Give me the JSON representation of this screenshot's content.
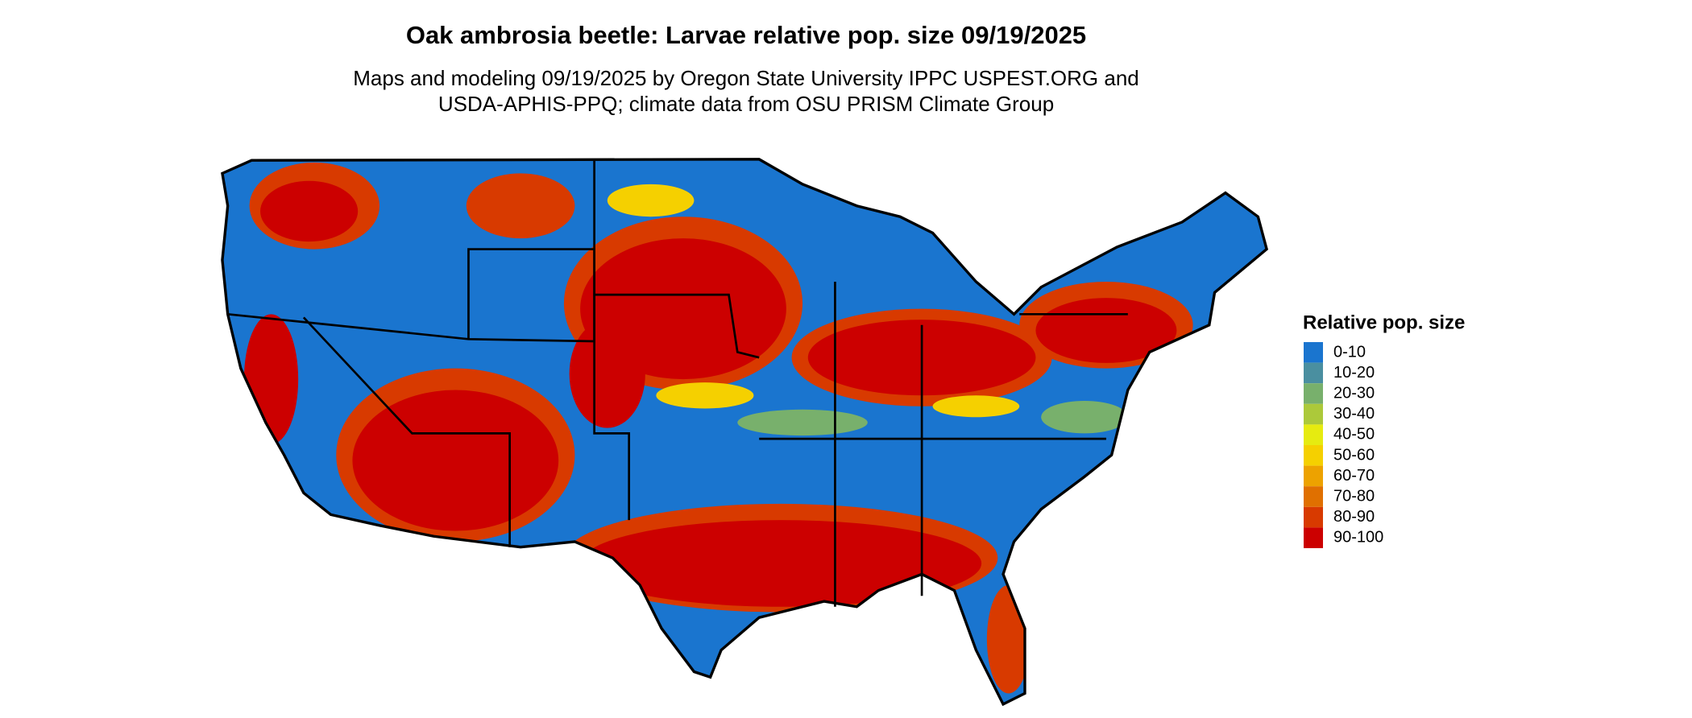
{
  "title": "Oak ambrosia beetle: Larvae relative pop. size 09/19/2025",
  "subtitle": [
    "Maps and modeling 09/19/2025 by Oregon State University IPPC USPEST.ORG and",
    "USDA-APHIS-PPQ; climate data from OSU PRISM Climate Group"
  ],
  "legend": {
    "title": "Relative pop. size",
    "items": [
      {
        "label": "0-10",
        "color": "#1a75cf"
      },
      {
        "label": "10-20",
        "color": "#4a8fa0"
      },
      {
        "label": "20-30",
        "color": "#78b06c"
      },
      {
        "label": "30-40",
        "color": "#acc93a"
      },
      {
        "label": "40-50",
        "color": "#e6eb10"
      },
      {
        "label": "50-60",
        "color": "#f5d000"
      },
      {
        "label": "60-70",
        "color": "#eda200"
      },
      {
        "label": "70-80",
        "color": "#e07000"
      },
      {
        "label": "80-90",
        "color": "#d83a00"
      },
      {
        "label": "90-100",
        "color": "#cc0000"
      }
    ]
  }
}
